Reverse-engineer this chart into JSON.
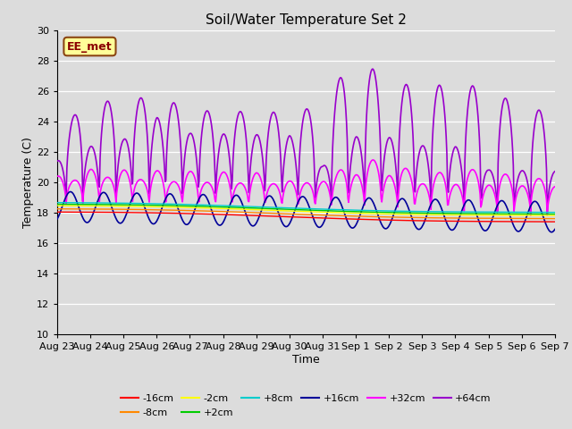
{
  "title": "Soil/Water Temperature Set 2",
  "xlabel": "Time",
  "ylabel": "Temperature (C)",
  "ylim": [
    10,
    30
  ],
  "xlim": [
    0,
    15
  ],
  "background_color": "#dcdcdc",
  "plot_bg_color": "#dcdcdc",
  "annotation_text": "EE_met",
  "annotation_bg": "#ffff99",
  "annotation_border": "#8B4513",
  "series": {
    "-16cm": {
      "color": "#ff0000"
    },
    "-8cm": {
      "color": "#ff8800"
    },
    "-2cm": {
      "color": "#ffff00"
    },
    "+2cm": {
      "color": "#00cc00"
    },
    "+8cm": {
      "color": "#00cccc"
    },
    "+16cm": {
      "color": "#000099"
    },
    "+32cm": {
      "color": "#ff00ff"
    },
    "+64cm": {
      "color": "#9900cc"
    }
  },
  "x_tick_labels": [
    "Aug 23",
    "Aug 24",
    "Aug 25",
    "Aug 26",
    "Aug 27",
    "Aug 28",
    "Aug 29",
    "Aug 30",
    "Aug 31",
    "Sep 1",
    "Sep 2",
    "Sep 3",
    "Sep 4",
    "Sep 5",
    "Sep 6",
    "Sep 7"
  ],
  "x_tick_positions": [
    0,
    1,
    2,
    3,
    4,
    5,
    6,
    7,
    8,
    9,
    10,
    11,
    12,
    13,
    14,
    15
  ],
  "yticks": [
    10,
    12,
    14,
    16,
    18,
    20,
    22,
    24,
    26,
    28,
    30
  ]
}
